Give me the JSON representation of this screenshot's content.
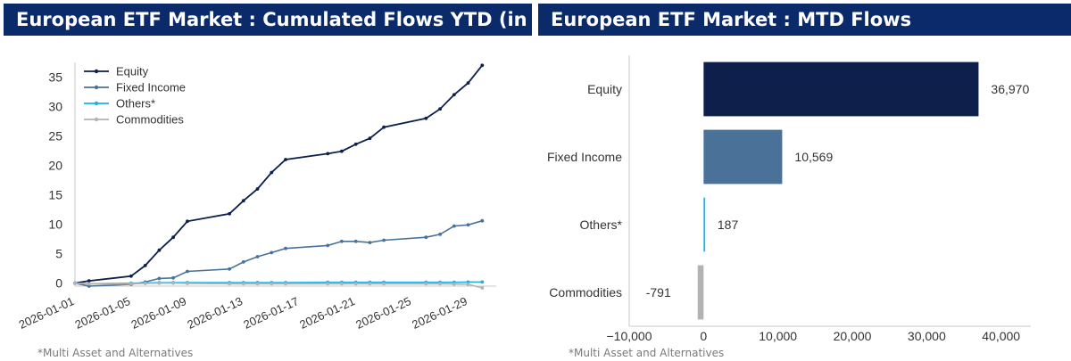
{
  "left_panel": {
    "title": "European ETF Market : Cumulated Flows YTD (in B€)",
    "footnote": "*Multi Asset and Alternatives"
  },
  "right_panel": {
    "title": "European ETF Market : MTD Flows",
    "footnote": "*Multi Asset and Alternatives"
  },
  "colors": {
    "header_bg": "#0b2a6a",
    "equity": "#0d1f4a",
    "fixed_income": "#4a7299",
    "others": "#1ab3e6",
    "commodities": "#b3b3b3"
  },
  "chart_data": [
    {
      "type": "line",
      "title": "European ETF Market : Cumulated Flows YTD (in B€)",
      "xlabel": "",
      "ylabel": "",
      "ylim": [
        -0.5,
        37.5
      ],
      "yticks": [
        0,
        5,
        10,
        15,
        20,
        25,
        30,
        35
      ],
      "xlim": [
        "2026-01-01",
        "2026-01-31"
      ],
      "xticks": [
        "2026-01-01",
        "2026-01-05",
        "2026-01-09",
        "2026-01-13",
        "2026-01-17",
        "2026-01-21",
        "2026-01-25",
        "2026-01-29"
      ],
      "legend": "top-left",
      "grid": false,
      "x": [
        "2026-01-01",
        "2026-01-02",
        "2026-01-05",
        "2026-01-06",
        "2026-01-07",
        "2026-01-08",
        "2026-01-09",
        "2026-01-12",
        "2026-01-13",
        "2026-01-14",
        "2026-01-15",
        "2026-01-16",
        "2026-01-19",
        "2026-01-20",
        "2026-01-21",
        "2026-01-22",
        "2026-01-23",
        "2026-01-26",
        "2026-01-27",
        "2026-01-28",
        "2026-01-29",
        "2026-01-30"
      ],
      "series": [
        {
          "name": "Equity",
          "color": "#0d1f4a",
          "values": [
            0.0,
            0.4,
            1.2,
            3.0,
            5.6,
            7.8,
            10.5,
            11.8,
            14.0,
            16.0,
            18.8,
            21.0,
            22.0,
            22.4,
            23.6,
            24.6,
            26.5,
            28.0,
            29.6,
            32.0,
            34.0,
            37.0
          ]
        },
        {
          "name": "Fixed Income",
          "color": "#4a7299",
          "values": [
            0.0,
            -0.5,
            -0.2,
            0.2,
            0.8,
            0.9,
            2.0,
            2.4,
            3.6,
            4.5,
            5.2,
            5.9,
            6.4,
            7.1,
            7.1,
            6.9,
            7.3,
            7.8,
            8.3,
            9.7,
            9.9,
            10.6
          ]
        },
        {
          "name": "Others*",
          "color": "#1ab3e6",
          "values": [
            0.0,
            -0.1,
            0.0,
            0.05,
            0.1,
            0.1,
            0.1,
            0.1,
            0.1,
            0.1,
            0.1,
            0.1,
            0.15,
            0.15,
            0.15,
            0.15,
            0.15,
            0.15,
            0.15,
            0.15,
            0.2,
            0.2
          ]
        },
        {
          "name": "Commodities",
          "color": "#b3b3b3",
          "values": [
            0.0,
            -0.1,
            -0.1,
            -0.05,
            0.0,
            0.0,
            -0.05,
            -0.1,
            -0.1,
            -0.1,
            -0.1,
            -0.1,
            -0.1,
            -0.1,
            -0.1,
            -0.1,
            -0.1,
            -0.1,
            -0.1,
            -0.15,
            -0.2,
            -0.8
          ]
        }
      ]
    },
    {
      "type": "bar",
      "orientation": "horizontal",
      "title": "European ETF Market : MTD Flows",
      "categories": [
        "Equity",
        "Fixed Income",
        "Others*",
        "Commodities"
      ],
      "values": [
        36970,
        10569,
        187,
        -791
      ],
      "value_labels": [
        "36,970",
        "10,569",
        "187",
        "-791"
      ],
      "colors": [
        "#0d1f4a",
        "#4a7299",
        "#1ab3e6",
        "#b3b3b3"
      ],
      "xlim": [
        -10000,
        44000
      ],
      "xticks": [
        -10000,
        0,
        10000,
        20000,
        30000,
        40000
      ],
      "xtick_labels": [
        "−10,000",
        "0",
        "10,000",
        "20,000",
        "30,000",
        "40,000"
      ],
      "xlabel": "",
      "ylabel": "",
      "grid": false
    }
  ]
}
